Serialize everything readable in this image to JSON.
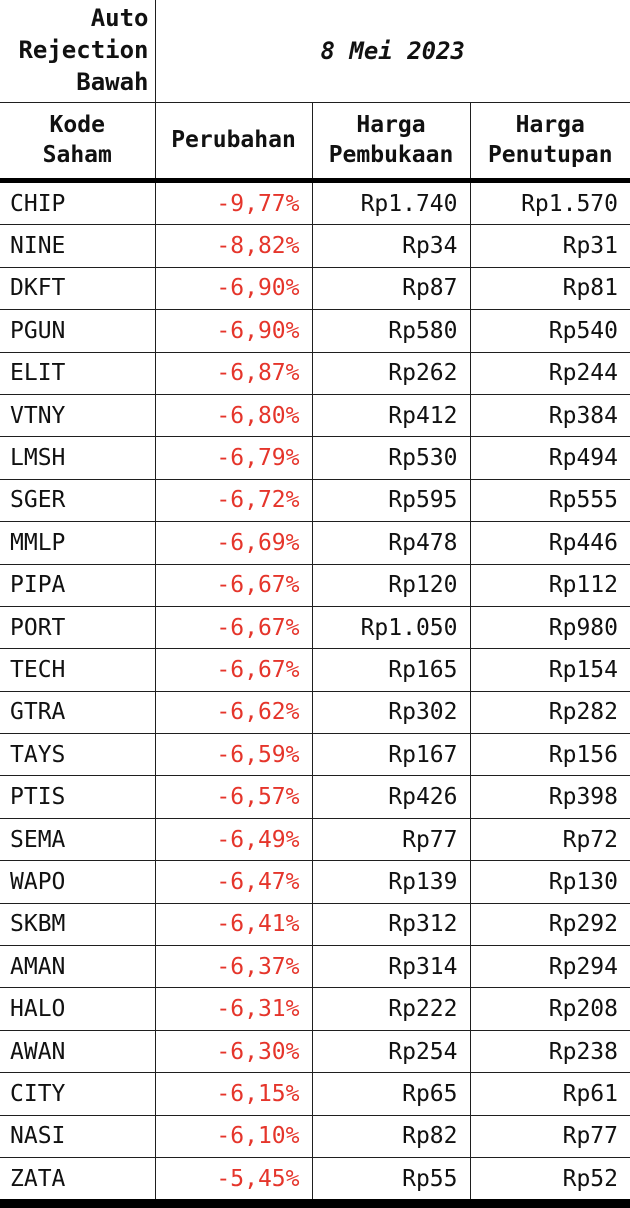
{
  "colors": {
    "negative": "#e5352b",
    "text": "#111111",
    "border": "#1f1f1f",
    "heavy_border": "#000000",
    "background": "#ffffff"
  },
  "table_display": {
    "title_lines": "Auto\nRejection\nBawah",
    "headers": [
      "Kode\nSaham",
      "Perubahan",
      "Harga\nPembukaan",
      "Harga\nPenutupan"
    ]
  },
  "chart_data": {
    "type": "table",
    "title": "Auto Rejection Bawah",
    "date": "8 Mei 2023",
    "columns": [
      "Kode Saham",
      "Perubahan",
      "Harga Pembukaan",
      "Harga Penutupan"
    ],
    "rows": [
      [
        "CHIP",
        "-9,77%",
        "Rp1.740",
        "Rp1.570"
      ],
      [
        "NINE",
        "-8,82%",
        "Rp34",
        "Rp31"
      ],
      [
        "DKFT",
        "-6,90%",
        "Rp87",
        "Rp81"
      ],
      [
        "PGUN",
        "-6,90%",
        "Rp580",
        "Rp540"
      ],
      [
        "ELIT",
        "-6,87%",
        "Rp262",
        "Rp244"
      ],
      [
        "VTNY",
        "-6,80%",
        "Rp412",
        "Rp384"
      ],
      [
        "LMSH",
        "-6,79%",
        "Rp530",
        "Rp494"
      ],
      [
        "SGER",
        "-6,72%",
        "Rp595",
        "Rp555"
      ],
      [
        "MMLP",
        "-6,69%",
        "Rp478",
        "Rp446"
      ],
      [
        "PIPA",
        "-6,67%",
        "Rp120",
        "Rp112"
      ],
      [
        "PORT",
        "-6,67%",
        "Rp1.050",
        "Rp980"
      ],
      [
        "TECH",
        "-6,67%",
        "Rp165",
        "Rp154"
      ],
      [
        "GTRA",
        "-6,62%",
        "Rp302",
        "Rp282"
      ],
      [
        "TAYS",
        "-6,59%",
        "Rp167",
        "Rp156"
      ],
      [
        "PTIS",
        "-6,57%",
        "Rp426",
        "Rp398"
      ],
      [
        "SEMA",
        "-6,49%",
        "Rp77",
        "Rp72"
      ],
      [
        "WAPO",
        "-6,47%",
        "Rp139",
        "Rp130"
      ],
      [
        "SKBM",
        "-6,41%",
        "Rp312",
        "Rp292"
      ],
      [
        "AMAN",
        "-6,37%",
        "Rp314",
        "Rp294"
      ],
      [
        "HALO",
        "-6,31%",
        "Rp222",
        "Rp208"
      ],
      [
        "AWAN",
        "-6,30%",
        "Rp254",
        "Rp238"
      ],
      [
        "CITY",
        "-6,15%",
        "Rp65",
        "Rp61"
      ],
      [
        "NASI",
        "-6,10%",
        "Rp82",
        "Rp77"
      ],
      [
        "ZATA",
        "-5,45%",
        "Rp55",
        "Rp52"
      ]
    ]
  }
}
